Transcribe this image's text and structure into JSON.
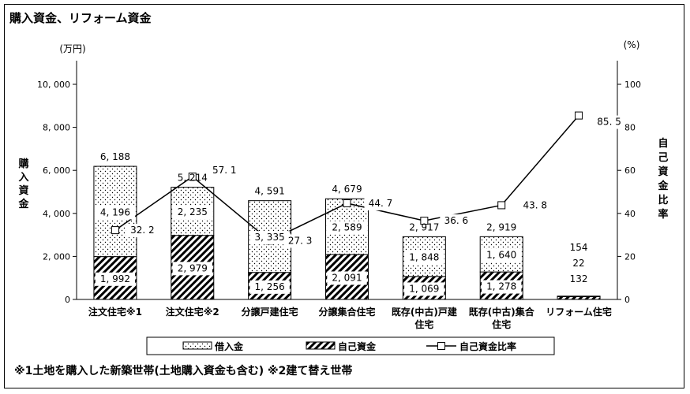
{
  "chart_data": {
    "type": "bar",
    "title": "購入資金、リフォーム資金",
    "categories": [
      [
        "注文住宅※1"
      ],
      [
        "注文住宅※2"
      ],
      [
        "分譲戸建住宅"
      ],
      [
        "分譲集合住宅"
      ],
      [
        "既存(中古)戸建",
        "住宅"
      ],
      [
        "既存(中古)集合",
        "住宅"
      ],
      [
        "リフォーム住宅"
      ]
    ],
    "series": [
      {
        "name": "自己資金",
        "values": [
          1992,
          2979,
          1256,
          2091,
          1069,
          1278,
          132
        ]
      },
      {
        "name": "借入金",
        "values": [
          4196,
          2235,
          3335,
          2589,
          1848,
          1640,
          22
        ]
      }
    ],
    "totals": [
      6188,
      5214,
      4591,
      4679,
      2917,
      2919,
      154
    ],
    "line": {
      "name": "自己資金比率",
      "values": [
        32.2,
        57.1,
        27.3,
        44.7,
        36.6,
        43.8,
        85.5
      ]
    },
    "value_labels": {
      "self": [
        "1, 992",
        "2, 979",
        "1, 256",
        "2, 091",
        "1, 069",
        "1, 278",
        "132"
      ],
      "loan": [
        "4, 196",
        "2, 235",
        "3, 335",
        "2, 589",
        "1, 848",
        "1, 640",
        "22"
      ],
      "total": [
        "6, 188",
        "5, 214",
        "4, 591",
        "4, 679",
        "2, 917",
        "2, 919",
        "154"
      ],
      "ratio": [
        "32. 2",
        "57. 1",
        "27. 3",
        "44. 7",
        "36. 6",
        "43. 8",
        "85. 5"
      ]
    },
    "ylabel": "購入資金",
    "yunit": "(万円)",
    "ylim": [
      0,
      10000
    ],
    "yticks": [
      "0",
      "2, 000",
      "4, 000",
      "6, 000",
      "8, 000",
      "10, 000"
    ],
    "y2label": "自己資金比率",
    "y2unit": "(%)",
    "y2lim": [
      0,
      100
    ],
    "y2ticks": [
      "0",
      "20",
      "40",
      "60",
      "80",
      "100"
    ],
    "legend": [
      "借入金",
      "自己資金",
      "自己資金比率"
    ],
    "legend_position": "bottom"
  },
  "footnote": "※1土地を購入した新築世帯(土地購入資金も含む) ※2建て替え世帯"
}
